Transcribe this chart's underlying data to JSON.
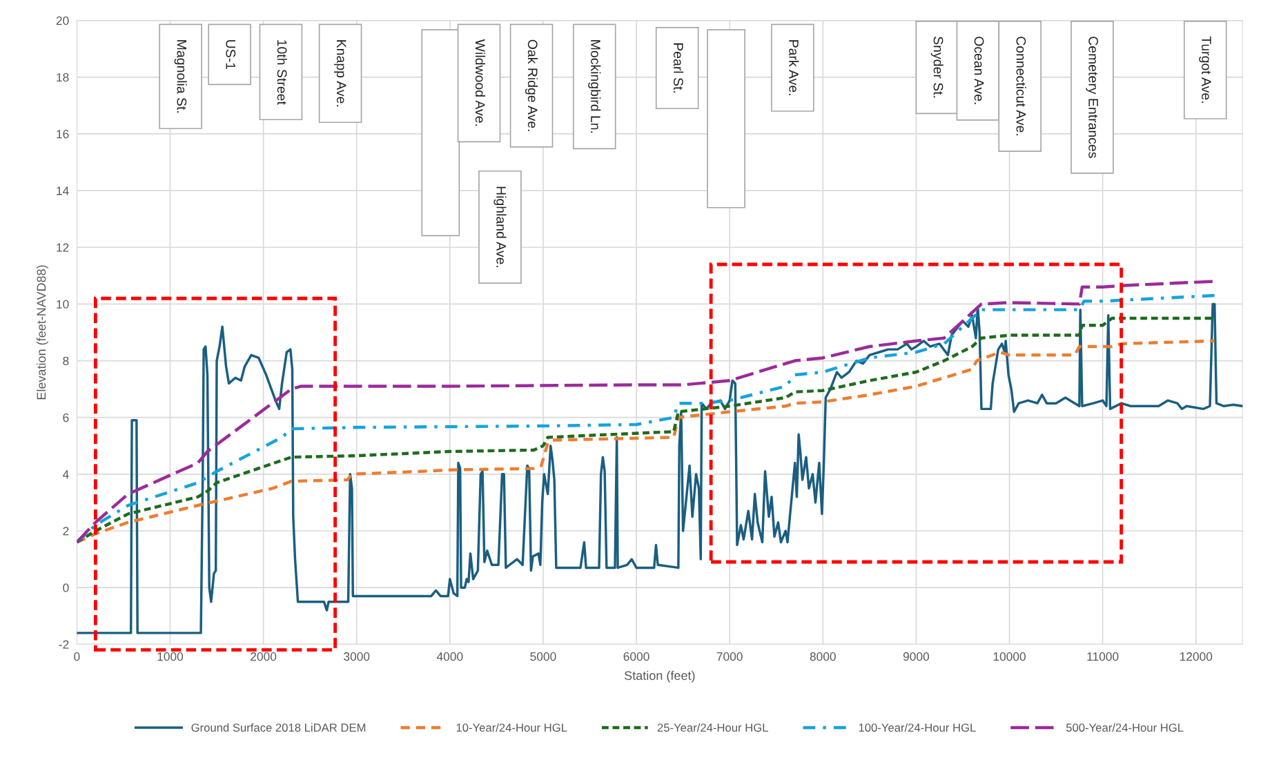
{
  "chart_data": {
    "type": "line",
    "xlabel": "Station (feet)",
    "ylabel": "Elevation (feet-NAVD88)",
    "xlim": [
      0,
      12500
    ],
    "ylim": [
      -2,
      20
    ],
    "xticks": [
      0,
      1000,
      2000,
      3000,
      4000,
      5000,
      6000,
      7000,
      8000,
      9000,
      10000,
      11000,
      12000
    ],
    "yticks": [
      -2,
      0,
      2,
      4,
      6,
      8,
      10,
      12,
      14,
      16,
      18,
      20
    ],
    "grid": true,
    "legend": "bottom",
    "marker": "none",
    "series": [
      {
        "name": "Ground Surface 2018 LiDAR DEM",
        "color": "#1a5e80",
        "line_style": "solid",
        "x": [
          0,
          580,
          590,
          640,
          650,
          1330,
          1350,
          1360,
          1380,
          1400,
          1420,
          1440,
          1470,
          1490,
          1500,
          1530,
          1560,
          1600,
          1630,
          1700,
          1760,
          1800,
          1870,
          1950,
          2030,
          2130,
          2170,
          2200,
          2250,
          2290,
          2310,
          2320,
          2340,
          2370,
          2400,
          2650,
          2680,
          2700,
          2910,
          2930,
          2950,
          2960,
          3800,
          3850,
          3900,
          3980,
          4000,
          4040,
          4080,
          4090,
          4110,
          4120,
          4160,
          4180,
          4200,
          4220,
          4250,
          4300,
          4330,
          4350,
          4370,
          4400,
          4450,
          4520,
          4560,
          4580,
          4600,
          4680,
          4720,
          4780,
          4830,
          4850,
          4870,
          4890,
          4950,
          4970,
          4990,
          5010,
          5050,
          5080,
          5100,
          5120,
          5140,
          5400,
          5440,
          5460,
          5600,
          5620,
          5640,
          5660,
          5680,
          5770,
          5790,
          5800,
          5900,
          5950,
          6000,
          6190,
          6210,
          6230,
          6450,
          6460,
          6480,
          6500,
          6540,
          6570,
          6600,
          6640,
          6670,
          6690,
          6700,
          6750,
          6800,
          6900,
          6950,
          7000,
          7030,
          7060,
          7080,
          7120,
          7150,
          7200,
          7240,
          7270,
          7300,
          7350,
          7380,
          7420,
          7450,
          7480,
          7520,
          7550,
          7600,
          7620,
          7660,
          7700,
          7720,
          7740,
          7760,
          7780,
          7820,
          7850,
          7890,
          7920,
          7960,
          7990,
          8010,
          8030,
          8080,
          8150,
          8200,
          8280,
          8360,
          8430,
          8500,
          8600,
          8700,
          8800,
          8900,
          8950,
          9000,
          9080,
          9150,
          9250,
          9340,
          9380,
          9450,
          9500,
          9560,
          9600,
          9640,
          9660,
          9680,
          9700,
          9800,
          9820,
          9880,
          9920,
          9950,
          9960,
          9990,
          10020,
          10050,
          10100,
          10200,
          10300,
          10350,
          10400,
          10500,
          10600,
          10700,
          10750,
          10760,
          10780,
          10900,
          11000,
          11040,
          11060,
          11080,
          11200,
          11300,
          11450,
          11600,
          11700,
          11800,
          11850,
          11900,
          12080,
          12150,
          12180,
          12200,
          12220,
          12300,
          12400,
          12500
        ],
        "values": [
          -1.6,
          -1.6,
          5.9,
          5.9,
          -1.6,
          -1.6,
          4,
          8.4,
          8.5,
          7.5,
          0,
          -0.5,
          0.5,
          0.6,
          8,
          8.5,
          9.2,
          7.8,
          7.2,
          7.4,
          7.3,
          7.8,
          8.2,
          8.1,
          7.5,
          6.6,
          6.3,
          7.2,
          8.3,
          8.4,
          7.7,
          2.5,
          1,
          -0.5,
          -0.5,
          -0.5,
          -0.8,
          -0.5,
          -0.5,
          4.0,
          3.5,
          -0.3,
          -0.3,
          -0.1,
          -0.3,
          -0.3,
          0.3,
          -0.2,
          -0.3,
          4.4,
          4.2,
          0,
          0,
          0.3,
          0.2,
          1.2,
          0.3,
          0.6,
          4.0,
          4.1,
          0.9,
          1.3,
          0.8,
          0.8,
          4.0,
          4.0,
          0.7,
          0.9,
          1.0,
          0.8,
          4.3,
          4.2,
          0.6,
          1.1,
          1.2,
          0.8,
          3.0,
          4.0,
          3.3,
          5.0,
          4.5,
          3.8,
          0.7,
          0.7,
          1.6,
          0.7,
          0.7,
          4.0,
          4.6,
          4.1,
          0.7,
          0.7,
          5.3,
          0.7,
          0.8,
          1.0,
          0.7,
          0.7,
          1.5,
          0.8,
          0.7,
          5.0,
          6.2,
          2.0,
          3.3,
          4.3,
          2.5,
          4.0,
          3.5,
          1.0,
          6.5,
          6.3,
          6.5,
          6.6,
          6.3,
          6.6,
          7.3,
          7.2,
          1.5,
          2.2,
          1.7,
          2.7,
          1.7,
          3.3,
          2.3,
          1.6,
          4.1,
          2.5,
          3.2,
          1.8,
          2.3,
          1.6,
          2.0,
          1.6,
          3.0,
          4.4,
          3.2,
          5.4,
          4.7,
          3.8,
          4.6,
          3.5,
          4.0,
          3.0,
          4.4,
          2.6,
          4.4,
          6.7,
          7.0,
          7.6,
          7.4,
          7.6,
          8.0,
          7.9,
          8.2,
          8.3,
          8.4,
          8.4,
          8.6,
          8.4,
          8.5,
          8.7,
          8.5,
          8.6,
          8.2,
          8.9,
          9.2,
          9.4,
          9.2,
          9.6,
          8.8,
          9.9,
          9.0,
          6.3,
          6.3,
          7.2,
          8.4,
          8.6,
          8.3,
          8.7,
          7.5,
          7.0,
          6.2,
          6.5,
          6.6,
          6.5,
          6.8,
          6.5,
          6.5,
          6.7,
          6.5,
          6.4,
          9.8,
          6.4,
          6.5,
          6.6,
          6.4,
          9.6,
          6.3,
          6.5,
          6.4,
          6.4,
          6.4,
          6.6,
          6.5,
          6.3,
          6.4,
          6.3,
          6.4,
          10.0,
          10.0,
          6.5,
          6.4,
          6.45,
          6.4
        ]
      },
      {
        "name": "10-Year/24-Hour HGL",
        "color": "#ed7d31",
        "line_style": "dashed",
        "x": [
          0,
          200,
          550,
          1300,
          2100,
          2300,
          2900,
          2950,
          3700,
          4000,
          4900,
          4980,
          5050,
          5100,
          6400,
          6450,
          7000,
          7600,
          7700,
          8000,
          8500,
          9000,
          9300,
          9600,
          9650,
          9900,
          10000,
          10700,
          10750,
          11100,
          11200,
          12200
        ],
        "values": [
          1.6,
          1.9,
          2.3,
          2.9,
          3.5,
          3.75,
          3.8,
          4.0,
          4.1,
          4.15,
          4.2,
          4.3,
          5.1,
          5.2,
          5.3,
          6.0,
          6.2,
          6.4,
          6.5,
          6.55,
          6.8,
          7.1,
          7.4,
          7.7,
          8.0,
          8.3,
          8.2,
          8.2,
          8.5,
          8.5,
          8.6,
          8.7
        ]
      },
      {
        "name": "25-Year/24-Hour HGL",
        "color": "#1e6b1e",
        "line_style": "dotted",
        "x": [
          0,
          200,
          550,
          1300,
          1400,
          1500,
          2300,
          3000,
          4000,
          4900,
          5000,
          5050,
          6400,
          6450,
          7000,
          7600,
          7700,
          8000,
          8500,
          9000,
          9300,
          9600,
          9700,
          10000,
          10750,
          10780,
          11000,
          11100,
          12200
        ],
        "values": [
          1.6,
          2.0,
          2.6,
          3.2,
          3.4,
          3.7,
          4.6,
          4.65,
          4.8,
          4.85,
          5.0,
          5.3,
          5.5,
          6.2,
          6.4,
          6.7,
          6.9,
          6.95,
          7.3,
          7.6,
          8.0,
          8.5,
          8.8,
          8.9,
          8.9,
          9.25,
          9.25,
          9.5,
          9.5
        ]
      },
      {
        "name": "100-Year/24-Hour HGL",
        "color": "#16a3dc",
        "line_style": "dashdot",
        "x": [
          0,
          200,
          550,
          1300,
          1500,
          2200,
          2300,
          3000,
          5000,
          6000,
          6400,
          6450,
          6700,
          7000,
          7600,
          7700,
          8000,
          8500,
          9000,
          9300,
          9600,
          9700,
          10750,
          10800,
          11000,
          12200
        ],
        "values": [
          1.6,
          2.2,
          2.9,
          3.7,
          4.1,
          5.3,
          5.6,
          5.65,
          5.7,
          5.75,
          6.0,
          6.5,
          6.5,
          6.6,
          7.1,
          7.5,
          7.6,
          8.1,
          8.3,
          8.6,
          9.5,
          9.8,
          9.8,
          10.1,
          10.1,
          10.3
        ]
      },
      {
        "name": "500-Year/24-Hour HGL",
        "color": "#9b2b9b",
        "line_style": "longdash",
        "x": [
          0,
          200,
          550,
          1300,
          1400,
          2300,
          2400,
          4000,
          6000,
          6500,
          7000,
          7600,
          7700,
          8000,
          8500,
          9000,
          9300,
          9600,
          9700,
          10000,
          10750,
          10780,
          11000,
          11200,
          12200
        ],
        "values": [
          1.6,
          2.3,
          3.3,
          4.4,
          4.8,
          7.0,
          7.1,
          7.1,
          7.15,
          7.15,
          7.3,
          7.9,
          8.0,
          8.1,
          8.5,
          8.7,
          8.8,
          9.7,
          10.0,
          10.05,
          10.0,
          10.6,
          10.6,
          10.65,
          10.8
        ]
      }
    ],
    "annotations": [
      "Magnolia St.",
      "US-1",
      "10th Street",
      "Knapp Ave.",
      "Wildwood Ave.",
      "Highland Ave.",
      "Oak Ridge Ave.",
      "Mockingbird Ln.",
      "Pearl St.",
      "Park Ave.",
      "Snyder St.",
      "Ocean Ave.",
      "Connecticut Ave.",
      "Cemetery Entrances",
      "Turgot Ave."
    ]
  }
}
